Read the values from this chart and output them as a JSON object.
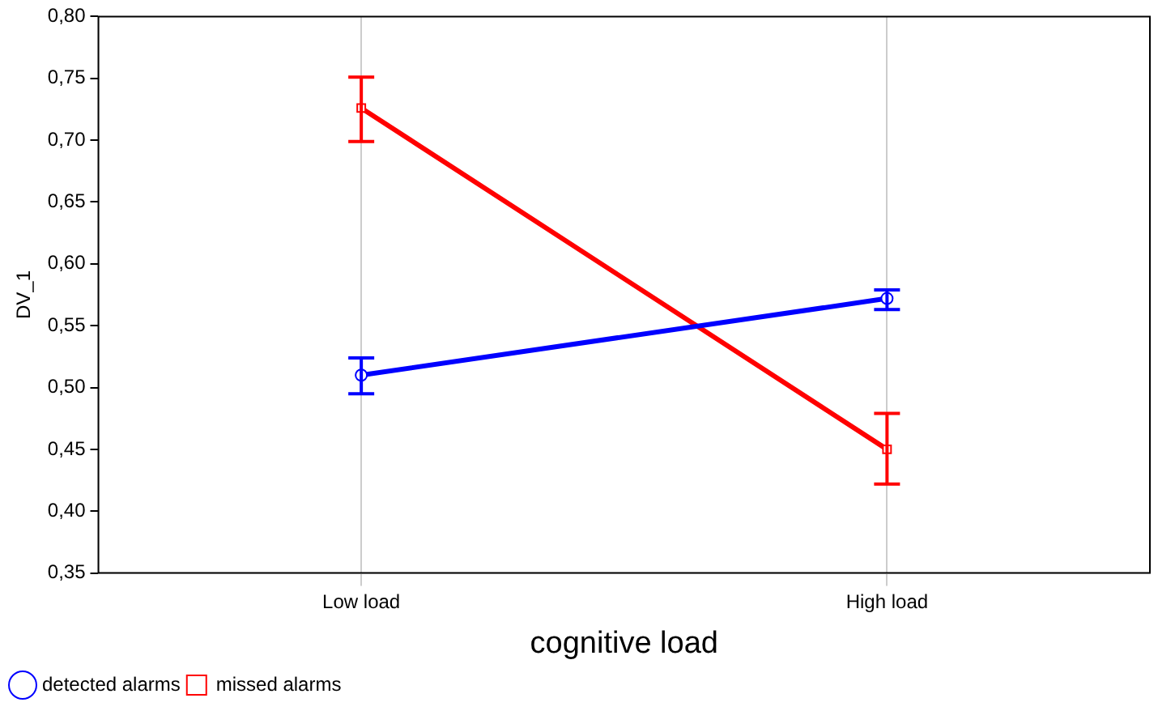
{
  "chart_data": {
    "type": "line",
    "xlabel": "cognitive load",
    "ylabel": "DV_1",
    "categories": [
      "Low load",
      "High load"
    ],
    "series": [
      {
        "name": "detected alarms",
        "color": "#0000ff",
        "values": [
          0.51,
          0.572
        ],
        "errors": [
          [
            0.495,
            0.524
          ],
          [
            0.563,
            0.579
          ]
        ],
        "marker": "circle"
      },
      {
        "name": "missed alarms",
        "color": "#ff0000",
        "values": [
          0.726,
          0.45
        ],
        "errors": [
          [
            0.699,
            0.751
          ],
          [
            0.422,
            0.479
          ]
        ],
        "marker": "square"
      }
    ],
    "ylim": [
      0.35,
      0.8
    ],
    "yticks": [
      {
        "value": 0.35,
        "label": "0,35"
      },
      {
        "value": 0.4,
        "label": "0,40"
      },
      {
        "value": 0.45,
        "label": "0,45"
      },
      {
        "value": 0.5,
        "label": "0,50"
      },
      {
        "value": 0.55,
        "label": "0,55"
      },
      {
        "value": 0.6,
        "label": "0,60"
      },
      {
        "value": 0.65,
        "label": "0,65"
      },
      {
        "value": 0.7,
        "label": "0,70"
      },
      {
        "value": 0.75,
        "label": "0,75"
      },
      {
        "value": 0.8,
        "label": "0,80"
      }
    ],
    "grid": "x",
    "legend": "bottom left",
    "line_style": "solid"
  }
}
